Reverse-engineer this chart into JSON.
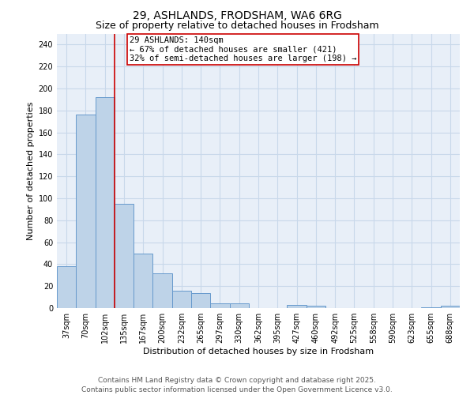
{
  "title1": "29, ASHLANDS, FRODSHAM, WA6 6RG",
  "title2": "Size of property relative to detached houses in Frodsham",
  "xlabel": "Distribution of detached houses by size in Frodsham",
  "ylabel": "Number of detached properties",
  "categories": [
    "37sqm",
    "70sqm",
    "102sqm",
    "135sqm",
    "167sqm",
    "200sqm",
    "232sqm",
    "265sqm",
    "297sqm",
    "330sqm",
    "362sqm",
    "395sqm",
    "427sqm",
    "460sqm",
    "492sqm",
    "525sqm",
    "558sqm",
    "590sqm",
    "623sqm",
    "655sqm",
    "688sqm"
  ],
  "values": [
    38,
    176,
    192,
    95,
    50,
    32,
    16,
    14,
    4,
    4,
    0,
    0,
    3,
    2,
    0,
    0,
    0,
    0,
    0,
    1,
    2
  ],
  "bar_color": "#bed3e8",
  "bar_edge_color": "#6699cc",
  "red_line_x": 2.5,
  "red_line_label": "29 ASHLANDS: 140sqm",
  "annotation_line2": "← 67% of detached houses are smaller (421)",
  "annotation_line3": "32% of semi-detached houses are larger (198) →",
  "ylim": [
    0,
    250
  ],
  "yticks": [
    0,
    20,
    40,
    60,
    80,
    100,
    120,
    140,
    160,
    180,
    200,
    220,
    240
  ],
  "annotation_box_color": "#ffffff",
  "annotation_box_edge": "#cc0000",
  "red_line_color": "#cc0000",
  "grid_color": "#c8d8ea",
  "background_color": "#e8eff8",
  "footer_line1": "Contains HM Land Registry data © Crown copyright and database right 2025.",
  "footer_line2": "Contains public sector information licensed under the Open Government Licence v3.0.",
  "title1_fontsize": 10,
  "title2_fontsize": 9,
  "axis_label_fontsize": 8,
  "tick_fontsize": 7,
  "annotation_fontsize": 7.5,
  "footer_fontsize": 6.5
}
